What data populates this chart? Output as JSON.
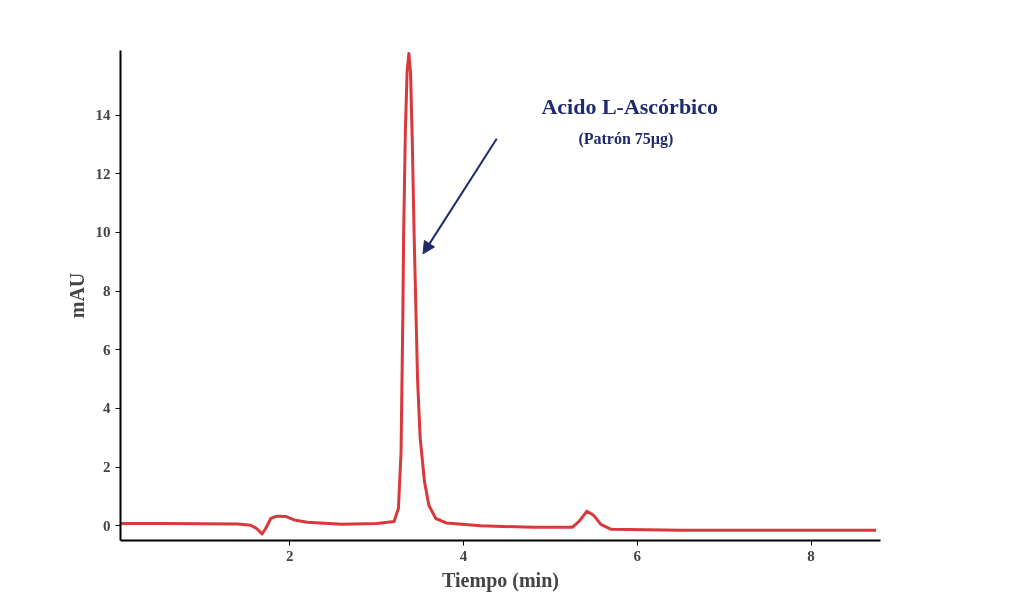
{
  "chart_data": {
    "type": "line",
    "xlabel": "Tiempo (min)",
    "ylabel": "mAU",
    "annotations": [
      "Acido L-Ascórbico",
      "(Patrón 75µg)"
    ],
    "xlim": [
      0.05,
      8.8
    ],
    "xticks": [
      2,
      4,
      6,
      8
    ],
    "ylim": [
      -0.5,
      16.2
    ],
    "yticks": [
      0,
      2,
      4,
      6,
      8,
      10,
      12,
      14
    ],
    "grid": false,
    "marker": "none",
    "line_style": "solid",
    "series": [
      {
        "color": "#d9383d",
        "x": [
          0.05,
          0.5,
          1.0,
          1.4,
          1.55,
          1.62,
          1.68,
          1.72,
          1.78,
          1.85,
          1.95,
          2.05,
          2.2,
          2.6,
          3.0,
          3.2,
          3.25,
          3.28,
          3.3,
          3.31,
          3.33,
          3.35,
          3.37,
          3.39,
          3.41,
          3.43,
          3.45,
          3.47,
          3.5,
          3.55,
          3.6,
          3.68,
          3.8,
          4.2,
          4.8,
          5.25,
          5.33,
          5.42,
          5.5,
          5.58,
          5.7,
          6.5,
          7.5,
          8.75
        ],
        "values": [
          0.08,
          0.08,
          0.07,
          0.06,
          0.02,
          -0.1,
          -0.28,
          -0.1,
          0.25,
          0.33,
          0.32,
          0.2,
          0.12,
          0.05,
          0.08,
          0.15,
          0.6,
          2.5,
          7,
          10,
          13.5,
          15.5,
          16.1,
          15.4,
          13,
          10,
          7.5,
          5,
          3,
          1.5,
          0.7,
          0.25,
          0.1,
          0.0,
          -0.05,
          -0.05,
          0.15,
          0.5,
          0.35,
          0.05,
          -0.12,
          -0.15,
          -0.15,
          -0.15
        ]
      }
    ]
  }
}
